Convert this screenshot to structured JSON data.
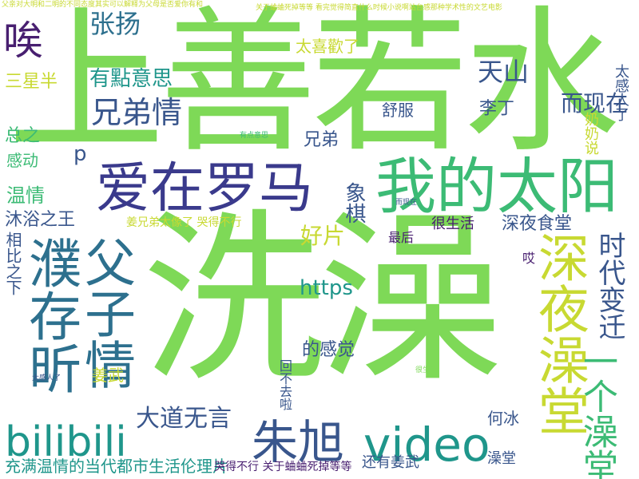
{
  "palette": {
    "lime": "#7ed957",
    "green": "#3cbb75",
    "teal": "#1f968b",
    "blue": "#2d708e",
    "indigo": "#39568c",
    "purple": "#481f70",
    "yellow": "#c8d932"
  },
  "words": {
    "shang_shan_ruo_shui": "上善若水",
    "xi_zao": "洗澡",
    "ai_zai_luoma": "爱在罗马",
    "wo_de_taiyang": "我的太阳",
    "pu_cun_xin": "濮存昕",
    "fu_zi_qing": "父子情",
    "shen_ye_zao_tang": "深夜澡堂",
    "yi_ge_zao_tang": "一个澡堂",
    "bilibili": "bilibili",
    "video": "video",
    "zhu_xu": "朱旭",
    "ai": "唉",
    "zhang_yang": "张扬",
    "tian_shan": "天山",
    "er_xian_zai": "而现在",
    "xiong_di_qing": "兄弟情",
    "you_dian_yi_si": "有點意思",
    "tai_xi_huan_le": "太喜歡了",
    "san_xing_ban": "三星半",
    "zong_zhi": "总之",
    "gan_dong": "感动",
    "wen_qing": "温情",
    "mu_yu_zhi_wang": "沐浴之王",
    "xiang_bi_zhi_xia": "相比之下",
    "xiang_qi": "象棋",
    "hao_pian": "好片",
    "hen_sheng_huo": "很生活",
    "shen_ye_shi_tang": "深夜食堂",
    "shi_dai_bian_qian": "时代变迁",
    "nai_nai_shuo": "奶奶说",
    "tai_gan_ren_le": "太感人了",
    "li_ding": "李丁",
    "shu_fu": "舒服",
    "xiong_di": "兄弟",
    "https": "https",
    "p": "p",
    "jiang_xiong_di": "姜兄弟太像了 哭得不行",
    "zui_hou": "最后",
    "ai2": "哎",
    "de_gan_jue": "的感觉",
    "hui_bu_qu_la": "回不去啦",
    "jiang_wu": "姜武",
    "da_dao_wu_yan": "大道无言",
    "he_bing": "何冰",
    "zao_tang": "澡堂",
    "hai_you_jiang_wu": "还有姜武",
    "bottom_phrase": "充满温情的当代都市生活伦理片",
    "bottom_phrase2": "哭得不行 关于蛐蛐死掉等等",
    "top_tiny": "父亲对大明和二明的不同态度其实可以解释为父母是否爱你有和",
    "top_tiny2": "关于蛐蛐死掉等等 看完觉得简直什么时候小说啊站台感那种学术性的文艺电影",
    "tiny_a": "而现在",
    "tiny_b": "有点意思",
    "tiny_c": "很生活",
    "tiny_d": "太感人了"
  }
}
